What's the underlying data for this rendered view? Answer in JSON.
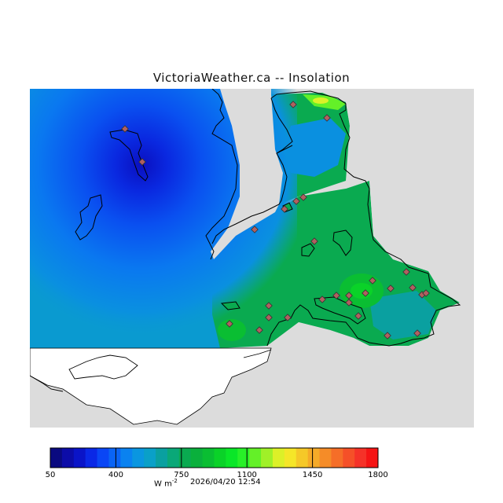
{
  "title": "VictoriaWeather.ca -- Insolation",
  "colorbar": {
    "ticks": [
      "50",
      "400",
      "750",
      "1100",
      "1450",
      "1800"
    ],
    "units": "W m",
    "units_exponent": "-2",
    "timestamp": "2026/04/20 12:54",
    "colors": [
      "#0a0a80",
      "#0c0ca8",
      "#0a14c8",
      "#0a28e6",
      "#0a46f5",
      "#0a64f5",
      "#0a82f0",
      "#0a96e0",
      "#0aa0c8",
      "#0aa0a0",
      "#0aa878",
      "#0aaa50",
      "#0ab03c",
      "#0abe32",
      "#0ad228",
      "#0ae628",
      "#28f028",
      "#64f028",
      "#a0f028",
      "#dcf028",
      "#f5e628",
      "#f5c828",
      "#f5aa28",
      "#f58c28",
      "#f56e28",
      "#f55028",
      "#f53228",
      "#f51414"
    ]
  },
  "colors": {
    "land_gray": "#dcdcdc",
    "mask_white": "#ffffff",
    "station": "#b06060"
  }
}
